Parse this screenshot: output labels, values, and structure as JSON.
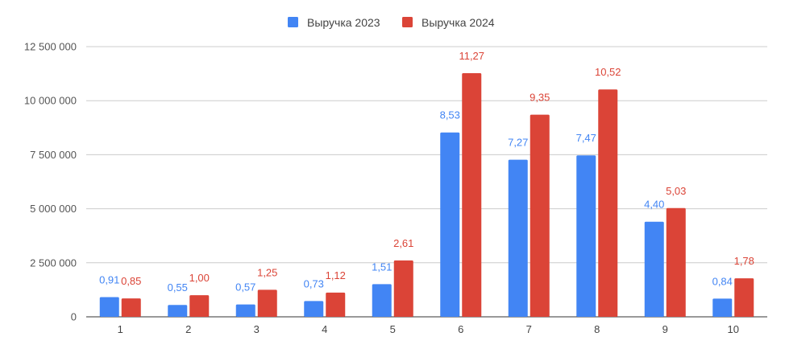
{
  "chart_data": {
    "type": "bar",
    "categories": [
      "1",
      "2",
      "3",
      "4",
      "5",
      "6",
      "7",
      "8",
      "9",
      "10"
    ],
    "series": [
      {
        "name": "Выручка 2023",
        "color": "#4285f4",
        "values": [
          910000,
          550000,
          570000,
          730000,
          1510000,
          8530000,
          7270000,
          7470000,
          4400000,
          840000
        ],
        "labels": [
          "0,91",
          "0,55",
          "0,57",
          "0,73",
          "1,51",
          "8,53",
          "7,27",
          "7,47",
          "4,40",
          "0,84"
        ]
      },
      {
        "name": "Выручка 2024",
        "color": "#db4437",
        "values": [
          850000,
          1000000,
          1250000,
          1120000,
          2610000,
          11270000,
          9350000,
          10520000,
          5030000,
          1780000
        ],
        "labels": [
          "0,85",
          "1,00",
          "1,25",
          "1,12",
          "2,61",
          "11,27",
          "9,35",
          "10,52",
          "5,03",
          "1,78"
        ]
      }
    ],
    "ylim": [
      0,
      12500000
    ],
    "yticks": [
      0,
      2500000,
      5000000,
      7500000,
      10000000,
      12500000
    ],
    "ytick_labels": [
      "0",
      "2 500 000",
      "5 000 000",
      "7 500 000",
      "10 000 000",
      "12 500 000"
    ],
    "grid": true,
    "legend_position": "top-center"
  }
}
